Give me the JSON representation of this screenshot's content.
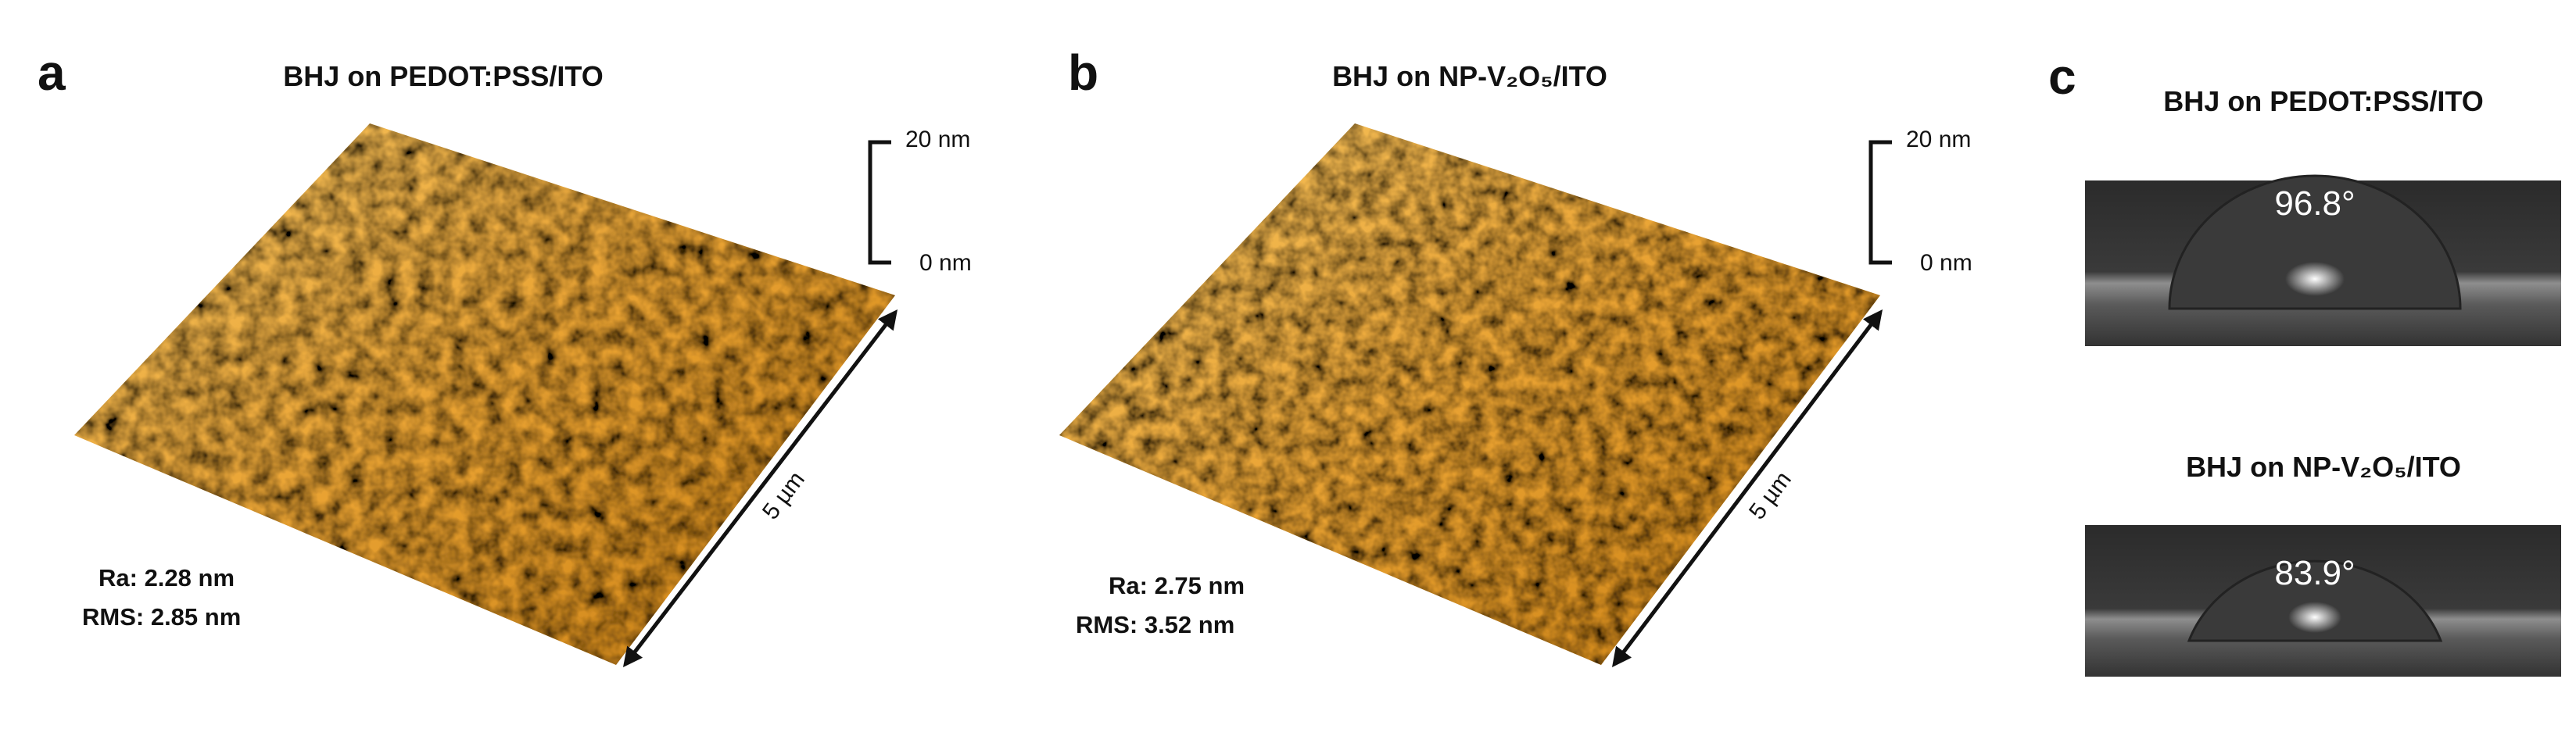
{
  "panels": [
    {
      "label": "a",
      "title": "BHJ on PEDOT:PSS/ITO",
      "scale_max": "20 nm",
      "scale_min": "0 nm",
      "lateral": "5 µm",
      "ra": "Ra: 2.28 nm",
      "rms": "RMS: 2.85 nm"
    },
    {
      "label": "b",
      "title": "BHJ on NP-V₂O₅/ITO",
      "scale_max": "20 nm",
      "scale_min": "0 nm",
      "lateral": "5 µm",
      "ra": "Ra: 2.75 nm",
      "rms": "RMS: 3.52 nm"
    }
  ],
  "contact_angle": {
    "label": "c",
    "items": [
      {
        "title": "BHJ on PEDOT:PSS/ITO",
        "angle": "96.8°"
      },
      {
        "title": "BHJ on NP-V₂O₅/ITO",
        "angle": "83.9°"
      }
    ]
  }
}
